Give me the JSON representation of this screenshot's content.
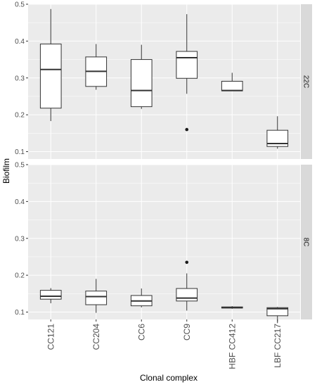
{
  "chart_data": {
    "type": "boxplot",
    "xlabel": "Clonal complex",
    "ylabel": "Biofilm",
    "categories": [
      "CC121",
      "CC204",
      "CC6",
      "CC9",
      "HBF CC412",
      "LBF CC217"
    ],
    "y_ticks": [
      0.1,
      0.2,
      0.3,
      0.4,
      0.5
    ],
    "ylim": [
      0.08,
      0.5
    ],
    "grid": true,
    "facets": [
      {
        "strip_label": "22C",
        "boxes": [
          {
            "category": "CC121",
            "lower_whisker": 0.183,
            "q1": 0.218,
            "median": 0.323,
            "q3": 0.392,
            "upper_whisker": 0.487,
            "outliers": []
          },
          {
            "category": "CC204",
            "lower_whisker": 0.268,
            "q1": 0.277,
            "median": 0.318,
            "q3": 0.357,
            "upper_whisker": 0.392,
            "outliers": []
          },
          {
            "category": "CC6",
            "lower_whisker": 0.216,
            "q1": 0.222,
            "median": 0.266,
            "q3": 0.35,
            "upper_whisker": 0.39,
            "outliers": []
          },
          {
            "category": "CC9",
            "lower_whisker": 0.257,
            "q1": 0.299,
            "median": 0.355,
            "q3": 0.372,
            "upper_whisker": 0.473,
            "outliers": [
              0.16
            ]
          },
          {
            "category": "HBF CC412",
            "lower_whisker": 0.265,
            "q1": 0.265,
            "median": 0.266,
            "q3": 0.291,
            "upper_whisker": 0.314,
            "outliers": []
          },
          {
            "category": "LBF CC217",
            "lower_whisker": 0.108,
            "q1": 0.114,
            "median": 0.122,
            "q3": 0.158,
            "upper_whisker": 0.196,
            "outliers": []
          }
        ]
      },
      {
        "strip_label": "8C",
        "boxes": [
          {
            "category": "CC121",
            "lower_whisker": 0.124,
            "q1": 0.135,
            "median": 0.143,
            "q3": 0.159,
            "upper_whisker": 0.165,
            "outliers": []
          },
          {
            "category": "CC204",
            "lower_whisker": 0.098,
            "q1": 0.12,
            "median": 0.142,
            "q3": 0.157,
            "upper_whisker": 0.19,
            "outliers": []
          },
          {
            "category": "CC6",
            "lower_whisker": 0.113,
            "q1": 0.117,
            "median": 0.13,
            "q3": 0.145,
            "upper_whisker": 0.164,
            "outliers": []
          },
          {
            "category": "CC9",
            "lower_whisker": 0.104,
            "q1": 0.13,
            "median": 0.138,
            "q3": 0.164,
            "upper_whisker": 0.205,
            "outliers": [
              0.235
            ]
          },
          {
            "category": "HBF CC412",
            "lower_whisker": 0.109,
            "q1": 0.111,
            "median": 0.112,
            "q3": 0.114,
            "upper_whisker": 0.116,
            "outliers": []
          },
          {
            "category": "LBF CC217",
            "lower_whisker": 0.07,
            "q1": 0.09,
            "median": 0.109,
            "q3": 0.112,
            "upper_whisker": 0.114,
            "outliers": []
          }
        ]
      }
    ]
  },
  "colors": {
    "panel_background": "#ebebeb",
    "grid_major": "#ffffff",
    "strip_background": "#d9d9d9",
    "box_fill": "#ffffff",
    "box_line": "#333333",
    "outlier": "#1a1a1a"
  }
}
